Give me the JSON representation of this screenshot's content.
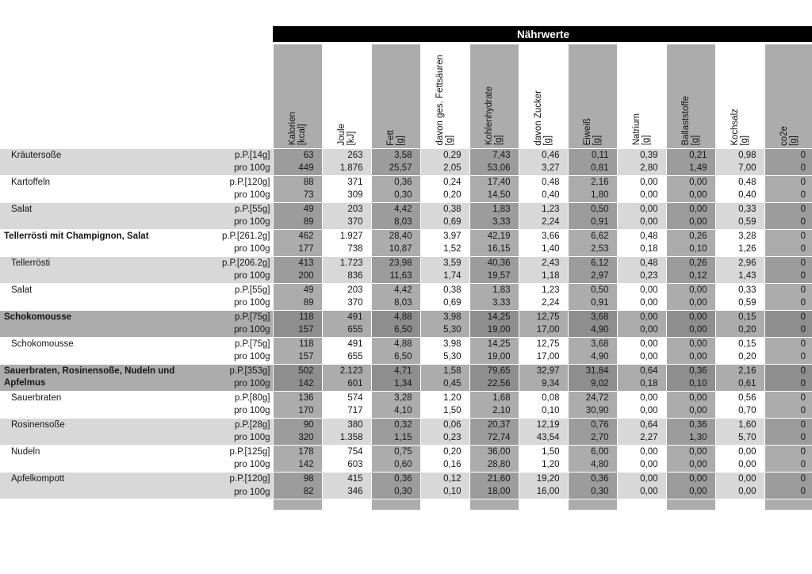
{
  "header": {
    "title": "Nährwerte"
  },
  "colors": {
    "title_bg": "#000000",
    "title_text": "#ffffff",
    "column_stripe": "#acacac",
    "row_band_light": "#d8d8d8",
    "row_band_mid": "#acacac",
    "light_on_stripe": "#9c9c9c",
    "mid_on_stripe": "#8e8e8e"
  },
  "columns": [
    {
      "name": "Kalorien",
      "unit": "[kcal]"
    },
    {
      "name": "Joule",
      "unit": "[kJ]"
    },
    {
      "name": "Fett",
      "unit": "[g]"
    },
    {
      "name": "davon ges. Fettsäuren",
      "unit": "[g]"
    },
    {
      "name": "Kohlenhydrate",
      "unit": "[g]"
    },
    {
      "name": "davon Zucker",
      "unit": "[g]"
    },
    {
      "name": "Eiweiß",
      "unit": "[g]"
    },
    {
      "name": "Natrium",
      "unit": "[g]"
    },
    {
      "name": "Ballaststoffe",
      "unit": "[g]"
    },
    {
      "name": "Kochsalz",
      "unit": "[g]"
    },
    {
      "name": "co2e",
      "unit": "[g]"
    }
  ],
  "items": [
    {
      "name": "Kräutersoße",
      "bold": false,
      "band": "light",
      "rows": [
        {
          "label": "p.P.[14g]",
          "values": [
            "63",
            "263",
            "3,58",
            "0,29",
            "7,43",
            "0,46",
            "0,11",
            "0,39",
            "0,21",
            "0,98",
            "0"
          ]
        },
        {
          "label": "pro 100g",
          "values": [
            "449",
            "1.876",
            "25,57",
            "2,05",
            "53,06",
            "3,27",
            "0,81",
            "2,80",
            "1,49",
            "7,00",
            "0"
          ]
        }
      ]
    },
    {
      "name": "Kartoffeln",
      "bold": false,
      "band": "white",
      "rows": [
        {
          "label": "p.P.[120g]",
          "values": [
            "88",
            "371",
            "0,36",
            "0,24",
            "17,40",
            "0,48",
            "2,16",
            "0,00",
            "0,00",
            "0,48",
            "0"
          ]
        },
        {
          "label": "pro 100g",
          "values": [
            "73",
            "309",
            "0,30",
            "0,20",
            "14,50",
            "0,40",
            "1,80",
            "0,00",
            "0,00",
            "0,40",
            "0"
          ]
        }
      ]
    },
    {
      "name": "Salat",
      "bold": false,
      "band": "light",
      "rows": [
        {
          "label": "p.P.[55g]",
          "values": [
            "49",
            "203",
            "4,42",
            "0,38",
            "1,83",
            "1,23",
            "0,50",
            "0,00",
            "0,00",
            "0,33",
            "0"
          ]
        },
        {
          "label": "pro 100g",
          "values": [
            "89",
            "370",
            "8,03",
            "0,69",
            "3,33",
            "2,24",
            "0,91",
            "0,00",
            "0,00",
            "0,59",
            "0"
          ]
        }
      ]
    },
    {
      "name": "Tellerrösti mit Champignon, Salat",
      "bold": true,
      "band": "white",
      "rows": [
        {
          "label": "p.P.[261.2g]",
          "values": [
            "462",
            "1.927",
            "28,40",
            "3,97",
            "42,19",
            "3,66",
            "6,62",
            "0,48",
            "0,26",
            "3,28",
            "0"
          ]
        },
        {
          "label": "pro 100g",
          "values": [
            "177",
            "738",
            "10,87",
            "1,52",
            "16,15",
            "1,40",
            "2,53",
            "0,18",
            "0,10",
            "1,26",
            "0"
          ]
        }
      ]
    },
    {
      "name": "Tellerrösti",
      "bold": false,
      "band": "light",
      "rows": [
        {
          "label": "p.P.[206.2g]",
          "values": [
            "413",
            "1.723",
            "23,98",
            "3,59",
            "40,36",
            "2,43",
            "6,12",
            "0,48",
            "0,26",
            "2,96",
            "0"
          ]
        },
        {
          "label": "pro 100g",
          "values": [
            "200",
            "836",
            "11,63",
            "1,74",
            "19,57",
            "1,18",
            "2,97",
            "0,23",
            "0,12",
            "1,43",
            "0"
          ]
        }
      ]
    },
    {
      "name": "Salat",
      "bold": false,
      "band": "white",
      "rows": [
        {
          "label": "p.P.[55g]",
          "values": [
            "49",
            "203",
            "4,42",
            "0,38",
            "1,83",
            "1,23",
            "0,50",
            "0,00",
            "0,00",
            "0,33",
            "0"
          ]
        },
        {
          "label": "pro 100g",
          "values": [
            "89",
            "370",
            "8,03",
            "0,69",
            "3,33",
            "2,24",
            "0,91",
            "0,00",
            "0,00",
            "0,59",
            "0"
          ]
        }
      ]
    },
    {
      "name": "Schokomousse",
      "bold": true,
      "band": "mid",
      "rows": [
        {
          "label": "p.P.[75g]",
          "values": [
            "118",
            "491",
            "4,88",
            "3,98",
            "14,25",
            "12,75",
            "3,68",
            "0,00",
            "0,00",
            "0,15",
            "0"
          ]
        },
        {
          "label": "pro 100g",
          "values": [
            "157",
            "655",
            "6,50",
            "5,30",
            "19,00",
            "17,00",
            "4,90",
            "0,00",
            "0,00",
            "0,20",
            "0"
          ]
        }
      ]
    },
    {
      "name": "Schokomousse",
      "bold": false,
      "band": "white",
      "rows": [
        {
          "label": "p.P.[75g]",
          "values": [
            "118",
            "491",
            "4,88",
            "3,98",
            "14,25",
            "12,75",
            "3,68",
            "0,00",
            "0,00",
            "0,15",
            "0"
          ]
        },
        {
          "label": "pro 100g",
          "values": [
            "157",
            "655",
            "6,50",
            "5,30",
            "19,00",
            "17,00",
            "4,90",
            "0,00",
            "0,00",
            "0,20",
            "0"
          ]
        }
      ]
    },
    {
      "name": "Sauerbraten, Rosinensoße, Nudeln und Apfelmus",
      "bold": true,
      "band": "mid",
      "rows": [
        {
          "label": "p.P.[353g]",
          "values": [
            "502",
            "2.123",
            "4,71",
            "1,58",
            "79,65",
            "32,97",
            "31,84",
            "0,64",
            "0,36",
            "2,16",
            "0"
          ]
        },
        {
          "label": "pro 100g",
          "values": [
            "142",
            "601",
            "1,34",
            "0,45",
            "22,56",
            "9,34",
            "9,02",
            "0,18",
            "0,10",
            "0,61",
            "0"
          ]
        }
      ]
    },
    {
      "name": "Sauerbraten",
      "bold": false,
      "band": "white",
      "rows": [
        {
          "label": "p.P.[80g]",
          "values": [
            "136",
            "574",
            "3,28",
            "1,20",
            "1,68",
            "0,08",
            "24,72",
            "0,00",
            "0,00",
            "0,56",
            "0"
          ]
        },
        {
          "label": "pro 100g",
          "values": [
            "170",
            "717",
            "4,10",
            "1,50",
            "2,10",
            "0,10",
            "30,90",
            "0,00",
            "0,00",
            "0,70",
            "0"
          ]
        }
      ]
    },
    {
      "name": "Rosinensoße",
      "bold": false,
      "band": "light",
      "rows": [
        {
          "label": "p.P.[28g]",
          "values": [
            "90",
            "380",
            "0,32",
            "0,06",
            "20,37",
            "12,19",
            "0,76",
            "0,64",
            "0,36",
            "1,60",
            "0"
          ]
        },
        {
          "label": "pro 100g",
          "values": [
            "320",
            "1.358",
            "1,15",
            "0,23",
            "72,74",
            "43,54",
            "2,70",
            "2,27",
            "1,30",
            "5,70",
            "0"
          ]
        }
      ]
    },
    {
      "name": "Nudeln",
      "bold": false,
      "band": "white",
      "rows": [
        {
          "label": "p.P.[125g]",
          "values": [
            "178",
            "754",
            "0,75",
            "0,20",
            "36,00",
            "1,50",
            "6,00",
            "0,00",
            "0,00",
            "0,00",
            "0"
          ]
        },
        {
          "label": "pro 100g",
          "values": [
            "142",
            "603",
            "0,60",
            "0,16",
            "28,80",
            "1,20",
            "4,80",
            "0,00",
            "0,00",
            "0,00",
            "0"
          ]
        }
      ]
    },
    {
      "name": "Apfelkompott",
      "bold": false,
      "band": "light",
      "rows": [
        {
          "label": "p.P.[120g]",
          "values": [
            "98",
            "415",
            "0,36",
            "0,12",
            "21,60",
            "19,20",
            "0,36",
            "0,00",
            "0,00",
            "0,00",
            "0"
          ]
        },
        {
          "label": "pro 100g",
          "values": [
            "82",
            "346",
            "0,30",
            "0,10",
            "18,00",
            "16,00",
            "0,30",
            "0,00",
            "0,00",
            "0,00",
            "0"
          ]
        }
      ]
    }
  ]
}
